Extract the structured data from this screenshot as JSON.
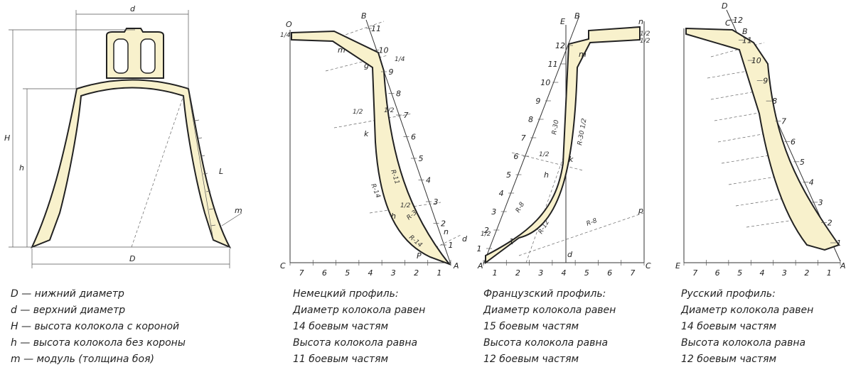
{
  "legend": [
    "D — нижний диаметр",
    "d — верхний диаметр",
    "H — высота колокола с короной",
    "h — высота колокола без короны",
    "m — модуль (толщина боя)"
  ],
  "bell": {
    "d": "d",
    "H": "H",
    "h": "h",
    "L": "L",
    "m": "m",
    "D": "D"
  },
  "german": {
    "caption": [
      "Немецкий профиль:",
      "Диаметр колокола равен",
      "14 боевым частям",
      "Высота колокола равна",
      "11 боевым частям"
    ],
    "points": {
      "O": "O",
      "B": "B",
      "m": "m",
      "g": "g",
      "k": "k",
      "h": "h",
      "n": "n",
      "d": "d",
      "P": "P",
      "C": "C",
      "A": "A"
    },
    "radii": [
      "R-11",
      "R-14",
      "R-3",
      "R-14"
    ],
    "fractions": [
      "1/4",
      "1/4",
      "1/2",
      "1/2",
      "1/2"
    ],
    "scale": [
      1,
      2,
      3,
      4,
      5,
      6,
      7,
      8,
      9,
      10,
      11
    ],
    "axis": [
      7,
      6,
      5,
      4,
      3,
      2,
      1
    ]
  },
  "french": {
    "caption": [
      "Французский профиль:",
      "Диаметр колокола равен",
      "15 боевым частям",
      "Высота колокола равна",
      "12 боевым частям"
    ],
    "points": {
      "E": "E",
      "B": "B",
      "n": "n",
      "m": "m",
      "k": "k",
      "h": "h",
      "A": "A",
      "C": "C",
      "d": "d",
      "p": "p"
    },
    "radii": [
      "R-30",
      "R-30 1/2",
      "R-8",
      "R-12",
      "R-8"
    ],
    "fractions": [
      "1/2",
      "1/2",
      "1/2",
      "1/2"
    ],
    "scale": [
      1,
      2,
      3,
      4,
      5,
      6,
      7,
      8,
      9,
      10,
      11,
      12
    ],
    "axis": [
      1,
      2,
      3,
      4,
      5,
      6,
      7
    ]
  },
  "russian": {
    "caption": [
      "Русский профиль:",
      "Диаметр колокола равен",
      "14 боевым частям",
      "Высота колокола равна",
      "12 боевым частям"
    ],
    "points": {
      "D": "D",
      "C": "C",
      "B": "B",
      "E": "E",
      "A": "A"
    },
    "scale": [
      1,
      2,
      3,
      4,
      5,
      6,
      7,
      8,
      9,
      10,
      11,
      12
    ],
    "axis": [
      7,
      6,
      5,
      4,
      3,
      2,
      1
    ]
  }
}
